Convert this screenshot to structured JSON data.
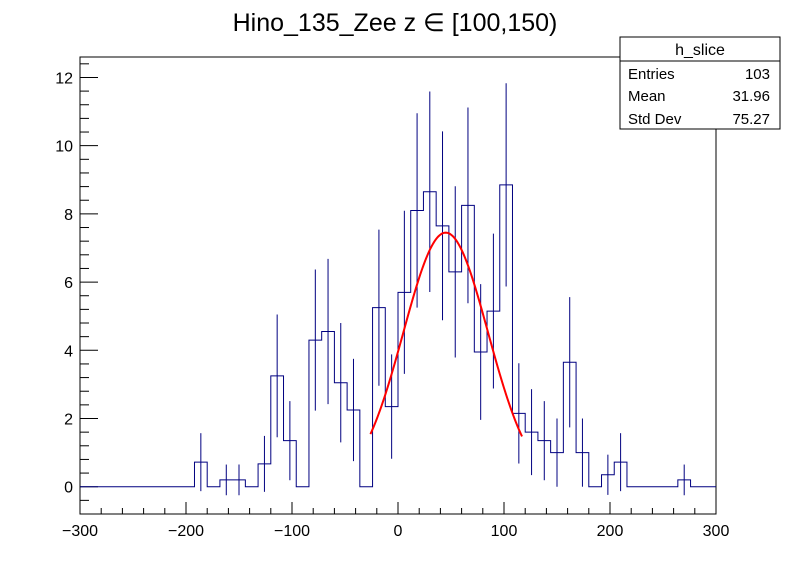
{
  "title": "Hino_135_Zee z  ∈ [100,150)",
  "colors": {
    "hist": "#000080",
    "fit": "#ff0000",
    "axis": "#000000",
    "background": "#ffffff"
  },
  "stats": {
    "title": "h_slice",
    "rows": [
      {
        "label": "Entries",
        "value": "103"
      },
      {
        "label": "Mean",
        "value": "31.96"
      },
      {
        "label": "Std Dev",
        "value": "75.27"
      }
    ]
  },
  "chart_data": {
    "type": "histogram",
    "title": "Hino_135_Zee z  ∈ [100,150)",
    "xlabel": "",
    "ylabel": "",
    "xlim": [
      -300,
      300
    ],
    "ylim": [
      -0.8,
      12.6
    ],
    "x_ticks": [
      -300,
      -200,
      -100,
      0,
      100,
      200,
      300
    ],
    "x_tick_labels": [
      "−300",
      "−200",
      "−100",
      "0",
      "100",
      "200",
      "300"
    ],
    "y_ticks": [
      0,
      2,
      4,
      6,
      8,
      10,
      12
    ],
    "y_tick_labels": [
      "0",
      "2",
      "4",
      "6",
      "8",
      "10",
      "12"
    ],
    "bin_width": 12,
    "bins": [
      {
        "x0": -300,
        "x1": -192,
        "y": 0,
        "err": 0
      },
      {
        "x0": -192,
        "x1": -180,
        "y": 0.72,
        "err": 0.85
      },
      {
        "x0": -180,
        "x1": -168,
        "y": 0,
        "err": 0
      },
      {
        "x0": -168,
        "x1": -156,
        "y": 0.2,
        "err": 0.45
      },
      {
        "x0": -156,
        "x1": -144,
        "y": 0.2,
        "err": 0.45
      },
      {
        "x0": -144,
        "x1": -132,
        "y": 0,
        "err": 0
      },
      {
        "x0": -132,
        "x1": -120,
        "y": 0.67,
        "err": 0.82
      },
      {
        "x0": -120,
        "x1": -108,
        "y": 3.25,
        "err": 1.8
      },
      {
        "x0": -108,
        "x1": -96,
        "y": 1.35,
        "err": 1.16
      },
      {
        "x0": -96,
        "x1": -84,
        "y": 0,
        "err": 0
      },
      {
        "x0": -84,
        "x1": -72,
        "y": 4.3,
        "err": 2.07
      },
      {
        "x0": -72,
        "x1": -60,
        "y": 4.55,
        "err": 2.13
      },
      {
        "x0": -60,
        "x1": -48,
        "y": 3.05,
        "err": 1.75
      },
      {
        "x0": -48,
        "x1": -36,
        "y": 2.25,
        "err": 1.5
      },
      {
        "x0": -36,
        "x1": -24,
        "y": 0,
        "err": 0
      },
      {
        "x0": -24,
        "x1": -12,
        "y": 5.25,
        "err": 2.29
      },
      {
        "x0": -12,
        "x1": 0,
        "y": 2.35,
        "err": 1.53
      },
      {
        "x0": 0,
        "x1": 12,
        "y": 5.7,
        "err": 2.39
      },
      {
        "x0": 12,
        "x1": 24,
        "y": 8.1,
        "err": 2.85
      },
      {
        "x0": 24,
        "x1": 36,
        "y": 8.65,
        "err": 2.94
      },
      {
        "x0": 36,
        "x1": 48,
        "y": 7.65,
        "err": 2.77
      },
      {
        "x0": 48,
        "x1": 60,
        "y": 6.3,
        "err": 2.51
      },
      {
        "x0": 60,
        "x1": 72,
        "y": 8.25,
        "err": 2.87
      },
      {
        "x0": 72,
        "x1": 84,
        "y": 3.95,
        "err": 1.99
      },
      {
        "x0": 84,
        "x1": 96,
        "y": 5.15,
        "err": 2.27
      },
      {
        "x0": 96,
        "x1": 108,
        "y": 8.85,
        "err": 2.98
      },
      {
        "x0": 108,
        "x1": 120,
        "y": 2.15,
        "err": 1.47
      },
      {
        "x0": 120,
        "x1": 132,
        "y": 1.6,
        "err": 1.26
      },
      {
        "x0": 132,
        "x1": 144,
        "y": 1.35,
        "err": 1.16
      },
      {
        "x0": 144,
        "x1": 156,
        "y": 1.0,
        "err": 1.0
      },
      {
        "x0": 156,
        "x1": 168,
        "y": 3.65,
        "err": 1.91
      },
      {
        "x0": 168,
        "x1": 180,
        "y": 1.0,
        "err": 1.0
      },
      {
        "x0": 180,
        "x1": 192,
        "y": 0,
        "err": 0
      },
      {
        "x0": 192,
        "x1": 204,
        "y": 0.35,
        "err": 0.59
      },
      {
        "x0": 204,
        "x1": 216,
        "y": 0.72,
        "err": 0.85
      },
      {
        "x0": 216,
        "x1": 264,
        "y": 0,
        "err": 0
      },
      {
        "x0": 264,
        "x1": 276,
        "y": 0.2,
        "err": 0.45
      },
      {
        "x0": 276,
        "x1": 300,
        "y": 0,
        "err": 0
      }
    ],
    "fit": {
      "type": "gaussian",
      "amplitude": 7.45,
      "mean": 45,
      "sigma": 40,
      "x_range": [
        -26,
        117
      ]
    }
  }
}
